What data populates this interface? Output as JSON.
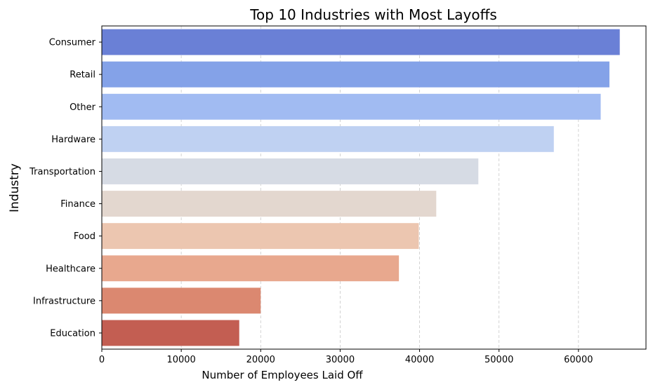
{
  "chart_data": {
    "type": "bar",
    "orientation": "horizontal",
    "title": "Top 10 Industries with Most Layoffs",
    "xlabel": "Number of Employees Laid Off",
    "ylabel": "Industry",
    "xlim": [
      0,
      68500
    ],
    "xticks": [
      0,
      10000,
      20000,
      30000,
      40000,
      50000,
      60000
    ],
    "grid": "x-dashed",
    "categories": [
      "Consumer",
      "Retail",
      "Other",
      "Hardware",
      "Transportation",
      "Finance",
      "Food",
      "Healthcare",
      "Infrastructure",
      "Education"
    ],
    "values": [
      65200,
      63900,
      62800,
      56900,
      47400,
      42100,
      39900,
      37400,
      20000,
      17300
    ],
    "colors": [
      "#6a80d6",
      "#84a2e8",
      "#a1bbf2",
      "#bfd1f2",
      "#d6dbe4",
      "#e3d7cf",
      "#ecc6b0",
      "#e8a88e",
      "#db8870",
      "#c35e52"
    ]
  }
}
